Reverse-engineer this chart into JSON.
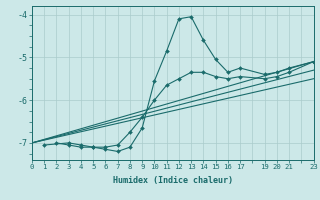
{
  "xlabel": "Humidex (Indice chaleur)",
  "bg_color": "#cce8e8",
  "line_color": "#1a6b6b",
  "grid_color": "#aacccc",
  "xlim": [
    0,
    23
  ],
  "ylim": [
    -7.4,
    -3.8
  ],
  "yticks": [
    -7,
    -6,
    -5,
    -4
  ],
  "shown_xticks": [
    0,
    1,
    2,
    3,
    4,
    5,
    6,
    7,
    8,
    9,
    10,
    11,
    12,
    13,
    14,
    15,
    16,
    17,
    19,
    20,
    21,
    23
  ],
  "curve1_x": [
    2,
    3,
    4,
    5,
    6,
    7,
    8,
    9,
    10,
    11,
    12,
    13,
    14,
    15,
    16,
    17,
    19,
    20,
    21,
    23
  ],
  "curve1_y": [
    -7.0,
    -7.05,
    -7.1,
    -7.1,
    -7.15,
    -7.2,
    -7.1,
    -6.65,
    -5.55,
    -4.85,
    -4.1,
    -4.05,
    -4.6,
    -5.05,
    -5.35,
    -5.25,
    -5.4,
    -5.35,
    -5.25,
    -5.1
  ],
  "curve2_x": [
    1,
    3,
    4,
    5,
    6,
    7,
    8,
    9,
    10,
    11,
    12,
    13,
    14,
    15,
    16,
    17,
    19,
    20,
    21,
    23
  ],
  "curve2_y": [
    -7.05,
    -7.0,
    -7.05,
    -7.1,
    -7.1,
    -7.05,
    -6.75,
    -6.4,
    -6.0,
    -5.65,
    -5.5,
    -5.35,
    -5.35,
    -5.45,
    -5.5,
    -5.45,
    -5.5,
    -5.45,
    -5.35,
    -5.1
  ],
  "line1_x": [
    0,
    23
  ],
  "line1_y": [
    -7.0,
    -5.1
  ],
  "line2_x": [
    0,
    23
  ],
  "line2_y": [
    -7.0,
    -5.3
  ],
  "line3_x": [
    0,
    23
  ],
  "line3_y": [
    -7.0,
    -5.5
  ]
}
